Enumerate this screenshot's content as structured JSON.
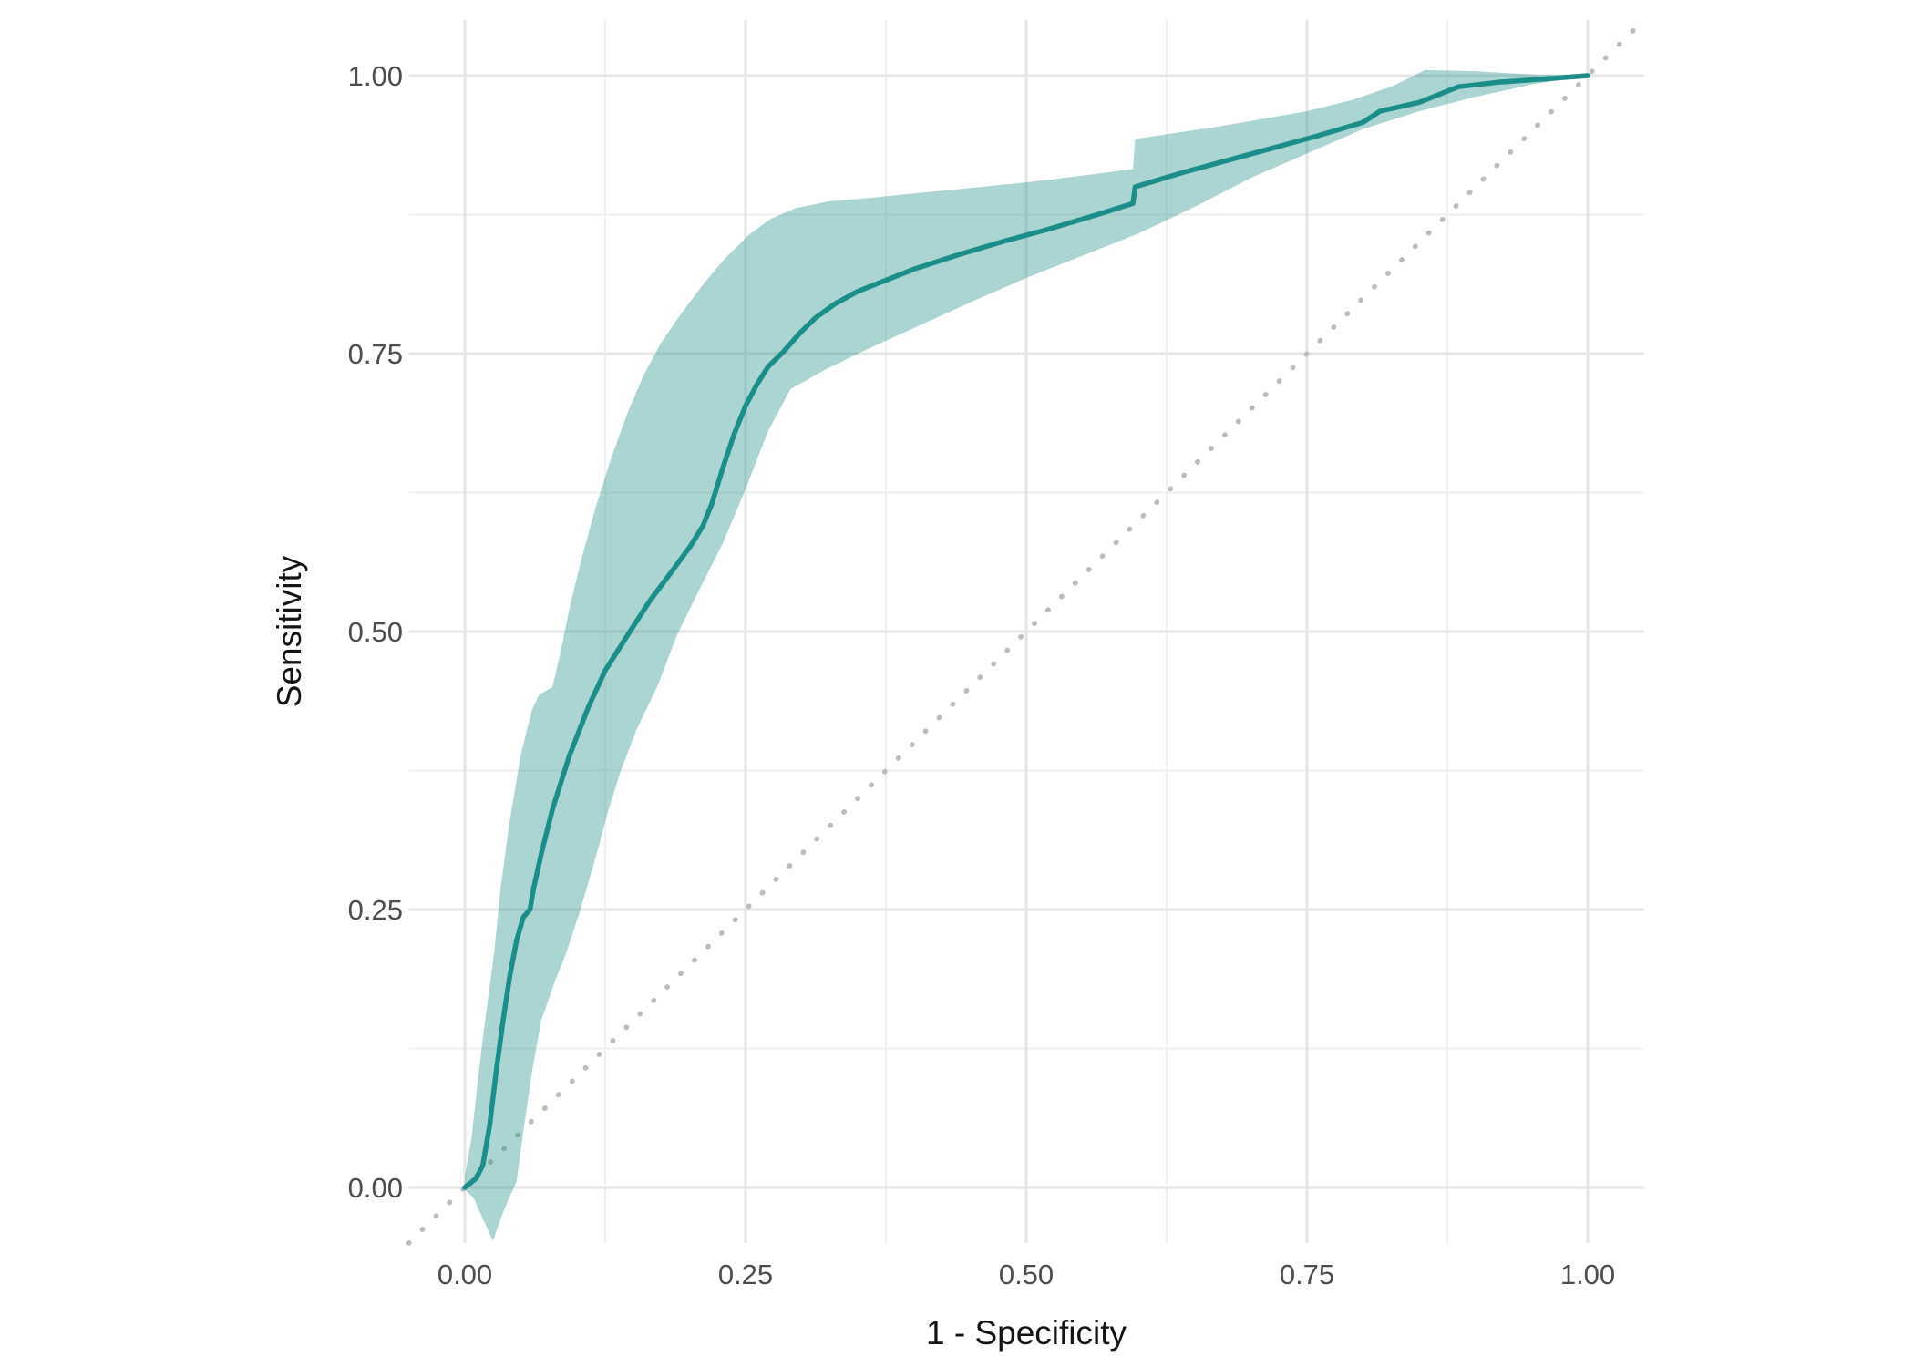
{
  "chart_data": {
    "type": "line",
    "subtype": "roc-curve-with-confidence-ribbon",
    "title": "",
    "xlabel": "1 - Specificity",
    "ylabel": "Sensitivity",
    "xlim": [
      -0.05,
      1.05
    ],
    "ylim": [
      -0.05,
      1.05
    ],
    "grid": "on",
    "legend": "none",
    "x_ticks": {
      "values": [
        0.0,
        0.25,
        0.5,
        0.75,
        1.0
      ],
      "labels": [
        "0.00",
        "0.25",
        "0.50",
        "0.75",
        "1.00"
      ]
    },
    "y_ticks": {
      "values": [
        0.0,
        0.25,
        0.5,
        0.75,
        1.0
      ],
      "labels": [
        "0.00",
        "0.25",
        "0.50",
        "0.75",
        "1.00"
      ]
    },
    "minor_ticks": [
      0.125,
      0.375,
      0.625,
      0.875
    ],
    "colors": {
      "curve": "#1b8e89",
      "ribbon": "#20908c",
      "ribbon_opacity": 0.38,
      "diagonal": "#bdbdbd",
      "grid_major": "#e6e6e6",
      "grid_minor": "#f0f0f0",
      "tick_text": "#4d4d4d",
      "title_text": "#141414",
      "background": "#ffffff"
    },
    "reference_line": {
      "style": "dotted",
      "from": [
        -0.05,
        -0.05
      ],
      "to": [
        1.05,
        1.05
      ]
    },
    "series": [
      {
        "name": "ROC curve",
        "points": [
          [
            0.0,
            0.0
          ],
          [
            0.01,
            0.008
          ],
          [
            0.016,
            0.02
          ],
          [
            0.022,
            0.055
          ],
          [
            0.028,
            0.105
          ],
          [
            0.034,
            0.15
          ],
          [
            0.04,
            0.19
          ],
          [
            0.046,
            0.222
          ],
          [
            0.052,
            0.243
          ],
          [
            0.058,
            0.25
          ],
          [
            0.061,
            0.268
          ],
          [
            0.068,
            0.3
          ],
          [
            0.078,
            0.34
          ],
          [
            0.093,
            0.388
          ],
          [
            0.11,
            0.432
          ],
          [
            0.125,
            0.465
          ],
          [
            0.147,
            0.5
          ],
          [
            0.165,
            0.528
          ],
          [
            0.185,
            0.555
          ],
          [
            0.201,
            0.577
          ],
          [
            0.212,
            0.595
          ],
          [
            0.22,
            0.615
          ],
          [
            0.23,
            0.648
          ],
          [
            0.24,
            0.678
          ],
          [
            0.25,
            0.703
          ],
          [
            0.26,
            0.722
          ],
          [
            0.27,
            0.738
          ],
          [
            0.284,
            0.752
          ],
          [
            0.298,
            0.768
          ],
          [
            0.312,
            0.782
          ],
          [
            0.33,
            0.795
          ],
          [
            0.35,
            0.806
          ],
          [
            0.37,
            0.814
          ],
          [
            0.4,
            0.826
          ],
          [
            0.44,
            0.839
          ],
          [
            0.48,
            0.851
          ],
          [
            0.52,
            0.862
          ],
          [
            0.56,
            0.874
          ],
          [
            0.595,
            0.885
          ],
          [
            0.597,
            0.9
          ],
          [
            0.64,
            0.913
          ],
          [
            0.68,
            0.924
          ],
          [
            0.72,
            0.935
          ],
          [
            0.76,
            0.946
          ],
          [
            0.8,
            0.958
          ],
          [
            0.815,
            0.968
          ],
          [
            0.85,
            0.976
          ],
          [
            0.885,
            0.99
          ],
          [
            0.92,
            0.994
          ],
          [
            0.96,
            0.997
          ],
          [
            1.0,
            1.0
          ]
        ]
      }
    ],
    "ribbon": {
      "name": "confidence band",
      "upper": [
        [
          0.0,
          0.01
        ],
        [
          0.006,
          0.045
        ],
        [
          0.012,
          0.1
        ],
        [
          0.018,
          0.15
        ],
        [
          0.026,
          0.21
        ],
        [
          0.032,
          0.27
        ],
        [
          0.04,
          0.33
        ],
        [
          0.05,
          0.39
        ],
        [
          0.06,
          0.43
        ],
        [
          0.066,
          0.443
        ],
        [
          0.078,
          0.45
        ],
        [
          0.085,
          0.48
        ],
        [
          0.093,
          0.52
        ],
        [
          0.103,
          0.562
        ],
        [
          0.116,
          0.61
        ],
        [
          0.13,
          0.655
        ],
        [
          0.145,
          0.697
        ],
        [
          0.16,
          0.732
        ],
        [
          0.175,
          0.76
        ],
        [
          0.192,
          0.785
        ],
        [
          0.212,
          0.812
        ],
        [
          0.232,
          0.836
        ],
        [
          0.252,
          0.856
        ],
        [
          0.272,
          0.871
        ],
        [
          0.295,
          0.881
        ],
        [
          0.325,
          0.887
        ],
        [
          0.36,
          0.89
        ],
        [
          0.4,
          0.894
        ],
        [
          0.45,
          0.899
        ],
        [
          0.5,
          0.904
        ],
        [
          0.55,
          0.91
        ],
        [
          0.595,
          0.916
        ],
        [
          0.597,
          0.943
        ],
        [
          0.63,
          0.948
        ],
        [
          0.67,
          0.954
        ],
        [
          0.71,
          0.961
        ],
        [
          0.75,
          0.968
        ],
        [
          0.79,
          0.978
        ],
        [
          0.825,
          0.99
        ],
        [
          0.855,
          1.005
        ],
        [
          0.9,
          1.004
        ],
        [
          0.95,
          1.001
        ],
        [
          1.0,
          1.0
        ]
      ],
      "lower": [
        [
          0.0,
          -0.002
        ],
        [
          0.008,
          -0.01
        ],
        [
          0.016,
          -0.028
        ],
        [
          0.025,
          -0.048
        ],
        [
          0.033,
          -0.025
        ],
        [
          0.04,
          -0.008
        ],
        [
          0.046,
          0.005
        ],
        [
          0.052,
          0.05
        ],
        [
          0.06,
          0.105
        ],
        [
          0.068,
          0.15
        ],
        [
          0.08,
          0.185
        ],
        [
          0.09,
          0.21
        ],
        [
          0.103,
          0.25
        ],
        [
          0.116,
          0.295
        ],
        [
          0.128,
          0.34
        ],
        [
          0.139,
          0.375
        ],
        [
          0.153,
          0.412
        ],
        [
          0.172,
          0.452
        ],
        [
          0.189,
          0.497
        ],
        [
          0.21,
          0.54
        ],
        [
          0.23,
          0.58
        ],
        [
          0.25,
          0.628
        ],
        [
          0.27,
          0.68
        ],
        [
          0.29,
          0.718
        ],
        [
          0.32,
          0.735
        ],
        [
          0.35,
          0.75
        ],
        [
          0.4,
          0.773
        ],
        [
          0.45,
          0.796
        ],
        [
          0.5,
          0.818
        ],
        [
          0.55,
          0.838
        ],
        [
          0.6,
          0.858
        ],
        [
          0.65,
          0.882
        ],
        [
          0.7,
          0.908
        ],
        [
          0.75,
          0.93
        ],
        [
          0.8,
          0.952
        ],
        [
          0.85,
          0.968
        ],
        [
          0.9,
          0.981
        ],
        [
          0.95,
          0.992
        ],
        [
          1.0,
          1.0
        ]
      ]
    }
  }
}
